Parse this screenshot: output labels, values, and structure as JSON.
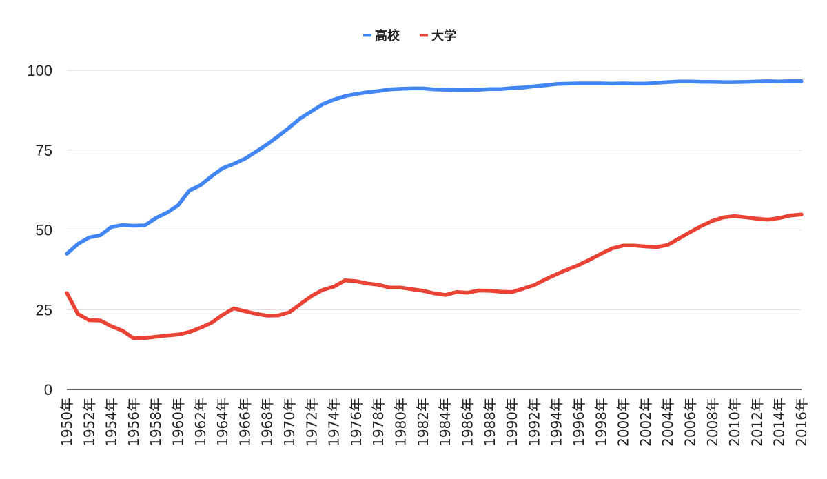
{
  "chart_data": {
    "type": "line",
    "title": "",
    "xlabel": "",
    "ylabel": "",
    "ylim": [
      0,
      100
    ],
    "yticks": [
      0,
      25,
      50,
      75,
      100
    ],
    "grid": true,
    "legend_position": "top-center",
    "x": [
      "1950年",
      "1951年",
      "1952年",
      "1953年",
      "1954年",
      "1955年",
      "1956年",
      "1957年",
      "1958年",
      "1959年",
      "1960年",
      "1961年",
      "1962年",
      "1963年",
      "1964年",
      "1965年",
      "1966年",
      "1967年",
      "1968年",
      "1969年",
      "1970年",
      "1971年",
      "1972年",
      "1973年",
      "1974年",
      "1975年",
      "1976年",
      "1977年",
      "1978年",
      "1979年",
      "1980年",
      "1981年",
      "1982年",
      "1983年",
      "1984年",
      "1985年",
      "1986年",
      "1987年",
      "1988年",
      "1989年",
      "1990年",
      "1991年",
      "1992年",
      "1993年",
      "1994年",
      "1995年",
      "1996年",
      "1997年",
      "1998年",
      "1999年",
      "2000年",
      "2001年",
      "2002年",
      "2003年",
      "2004年",
      "2005年",
      "2006年",
      "2007年",
      "2008年",
      "2009年",
      "2010年",
      "2011年",
      "2012年",
      "2013年",
      "2014年",
      "2015年",
      "2016年"
    ],
    "x_tick_labels": [
      "1950年",
      "1952年",
      "1954年",
      "1956年",
      "1958年",
      "1960年",
      "1962年",
      "1964年",
      "1966年",
      "1968年",
      "1970年",
      "1972年",
      "1974年",
      "1976年",
      "1978年",
      "1980年",
      "1982年",
      "1984年",
      "1986年",
      "1988年",
      "1990年",
      "1992年",
      "1994年",
      "1996年",
      "1998年",
      "2000年",
      "2002年",
      "2004年",
      "2006年",
      "2008年",
      "2010年",
      "2012年",
      "2014年",
      "2016年"
    ],
    "series": [
      {
        "name": "高校",
        "color": "#4285f4",
        "values": [
          42.5,
          45.6,
          47.6,
          48.3,
          50.9,
          51.5,
          51.3,
          51.4,
          53.7,
          55.4,
          57.7,
          62.3,
          64.0,
          66.8,
          69.3,
          70.7,
          72.3,
          74.5,
          76.8,
          79.4,
          82.1,
          85.0,
          87.2,
          89.4,
          90.8,
          91.9,
          92.6,
          93.1,
          93.5,
          94.0,
          94.2,
          94.3,
          94.3,
          94.0,
          93.9,
          93.8,
          93.8,
          93.9,
          94.1,
          94.1,
          94.4,
          94.6,
          95.0,
          95.3,
          95.7,
          95.8,
          95.9,
          95.9,
          95.9,
          95.8,
          95.9,
          95.8,
          95.8,
          96.1,
          96.3,
          96.5,
          96.5,
          96.4,
          96.4,
          96.3,
          96.3,
          96.4,
          96.5,
          96.6,
          96.5,
          96.6,
          96.6
        ]
      },
      {
        "name": "大学",
        "color": "#ea4335",
        "values": [
          30.2,
          23.6,
          21.7,
          21.6,
          19.8,
          18.4,
          16.0,
          16.1,
          16.5,
          16.9,
          17.2,
          18.0,
          19.3,
          20.9,
          23.4,
          25.4,
          24.5,
          23.7,
          23.1,
          23.2,
          24.2,
          26.8,
          29.3,
          31.2,
          32.2,
          34.2,
          33.9,
          33.2,
          32.8,
          31.9,
          31.9,
          31.4,
          30.9,
          30.1,
          29.6,
          30.5,
          30.3,
          31.0,
          30.9,
          30.6,
          30.5,
          31.6,
          32.7,
          34.5,
          36.1,
          37.6,
          39.0,
          40.7,
          42.5,
          44.2,
          45.1,
          45.1,
          44.8,
          44.6,
          45.3,
          47.3,
          49.3,
          51.2,
          52.8,
          53.9,
          54.3,
          53.9,
          53.5,
          53.2,
          53.7,
          54.5,
          54.8
        ]
      }
    ]
  }
}
